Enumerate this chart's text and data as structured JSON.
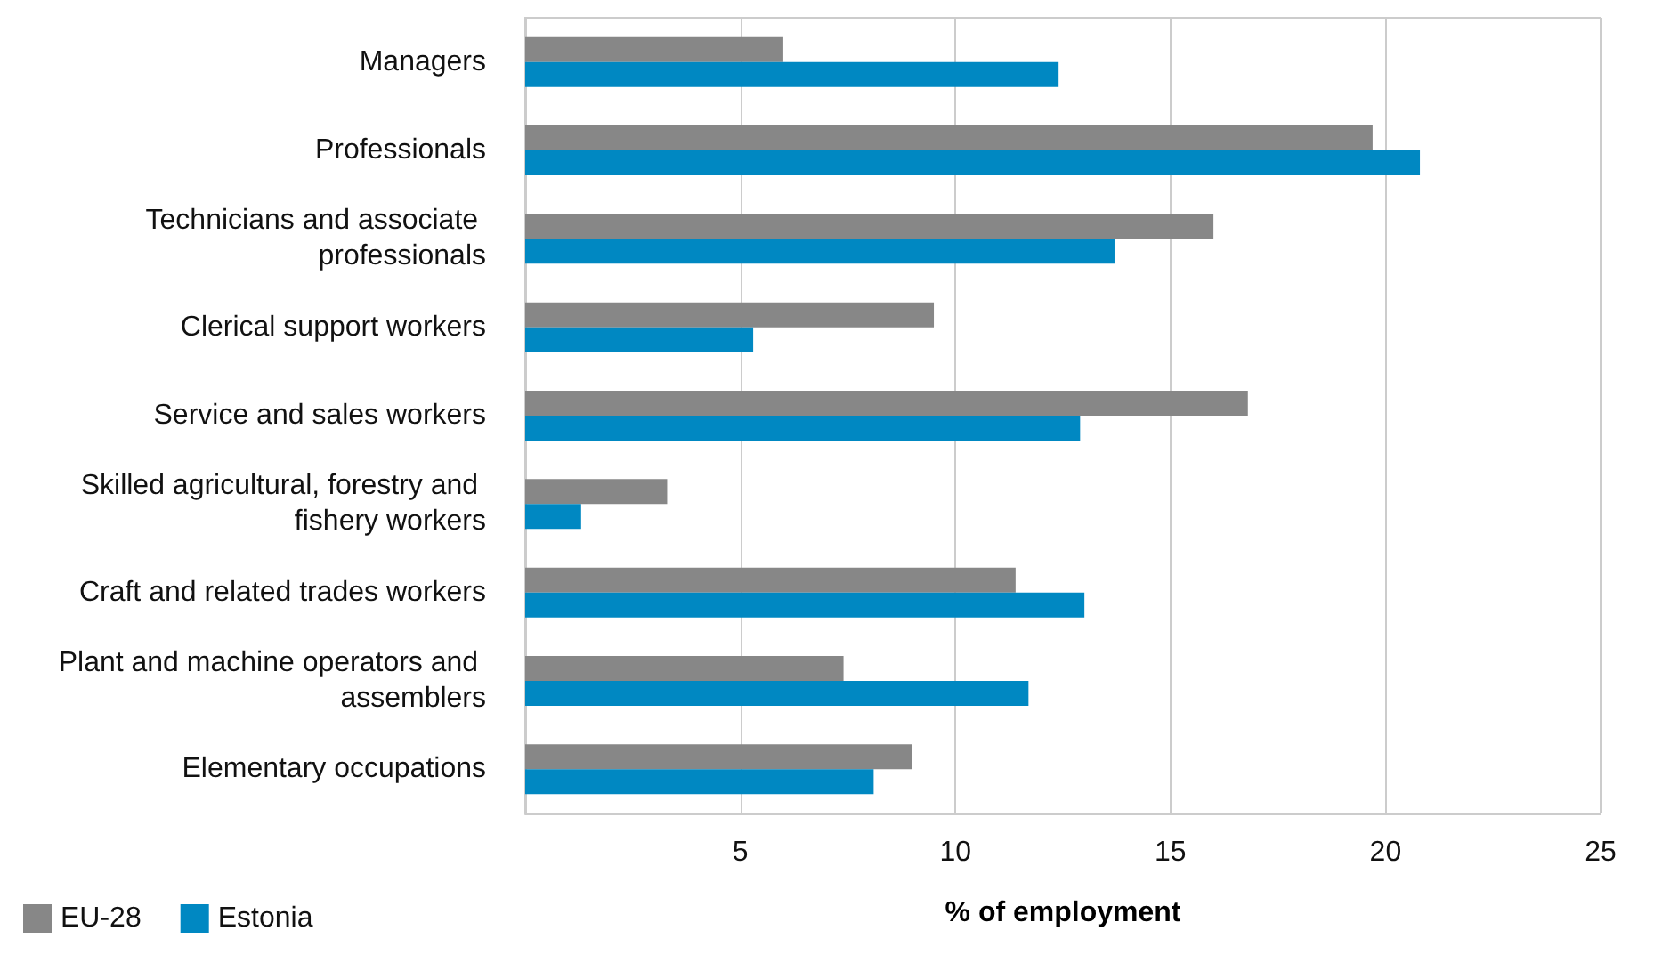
{
  "chart_data": {
    "type": "bar",
    "orientation": "horizontal",
    "xlabel": "% of employment",
    "categories": [
      "Managers",
      "Professionals",
      "Technicians and associate professionals",
      "Clerical support workers",
      "Service and sales workers",
      "Skilled agricultural, forestry and fishery workers",
      "Craft and related trades workers",
      "Plant and machine operators and assemblers",
      "Elementary occupations"
    ],
    "series": [
      {
        "name": "EU-28",
        "color": "#878787",
        "values": [
          6.0,
          19.7,
          16.0,
          9.5,
          16.8,
          3.3,
          11.4,
          7.4,
          9.0
        ]
      },
      {
        "name": "Estonia",
        "color": "#0088c2",
        "values": [
          12.4,
          20.8,
          13.7,
          5.3,
          12.9,
          1.3,
          13.0,
          11.7,
          8.1
        ]
      }
    ],
    "xlim": [
      0,
      25
    ],
    "xticks": [
      {
        "value": 0,
        "label": null
      },
      5,
      10,
      15,
      20,
      25
    ],
    "grid": "x",
    "legend": "bottom left"
  }
}
